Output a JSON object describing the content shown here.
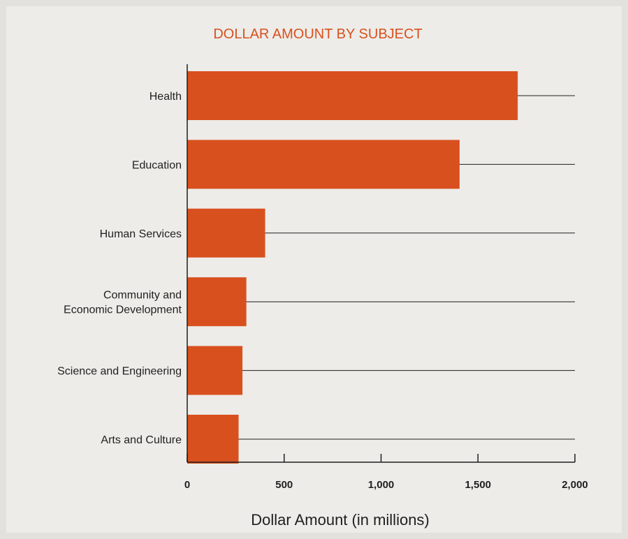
{
  "chart_data": {
    "type": "bar",
    "orientation": "horizontal",
    "title": "DOLLAR AMOUNT BY SUBJECT",
    "xlabel": "Dollar Amount (in millions)",
    "ylabel": "",
    "categories": [
      [
        "Health"
      ],
      [
        "Education"
      ],
      [
        "Human Services"
      ],
      [
        "Community and",
        "Economic Development"
      ],
      [
        "Science and Engineering"
      ],
      [
        "Arts and Culture"
      ]
    ],
    "values": [
      1705,
      1405,
      402,
      305,
      285,
      265
    ],
    "xlim": [
      0,
      2000
    ],
    "xticks": [
      0,
      500,
      1000,
      1500,
      2000
    ],
    "xtick_labels": [
      "0",
      "500",
      "1,000",
      "1,500",
      "2,000"
    ],
    "grid": "horizontal lines at each category",
    "colors": {
      "bar": "#d9501f",
      "title": "#d9501f",
      "background": "#edece8",
      "border": "#e3e1dd",
      "axis": "#1f1f1f"
    }
  }
}
